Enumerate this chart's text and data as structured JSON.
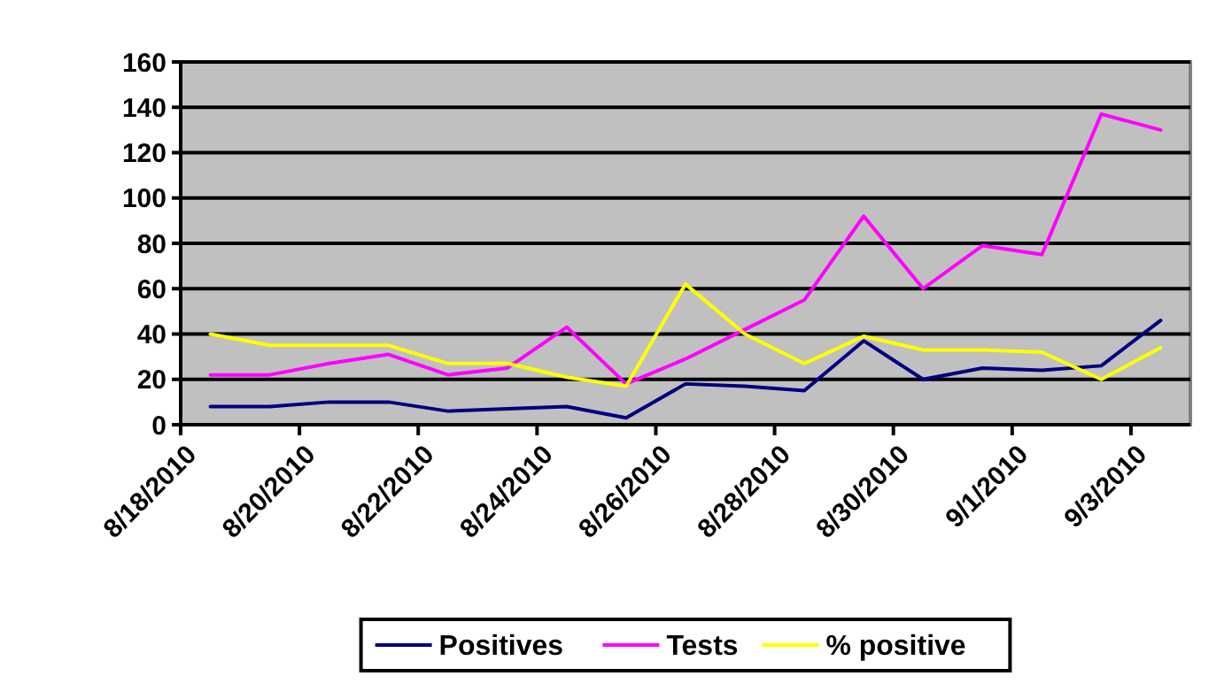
{
  "chart_data": {
    "type": "line",
    "x": [
      "2010-08-18T12:00",
      "2010-08-19T12:00",
      "2010-08-20T12:00",
      "2010-08-21T12:00",
      "2010-08-22T12:00",
      "2010-08-23T12:00",
      "2010-08-24T12:00",
      "2010-08-25T12:00",
      "2010-08-26T12:00",
      "2010-08-27T12:00",
      "2010-08-28T12:00",
      "2010-08-29T12:00",
      "2010-08-30T12:00",
      "2010-08-31T12:00",
      "2010-09-01T12:00",
      "2010-09-02T12:00",
      "2010-09-03T12:00"
    ],
    "series": [
      {
        "name": "Positives",
        "color": "#000080",
        "values": [
          8,
          8,
          10,
          10,
          6,
          7,
          8,
          3,
          18,
          17,
          15,
          37,
          20,
          25,
          24,
          26,
          46
        ]
      },
      {
        "name": "Tests",
        "color": "#ff00ff",
        "values": [
          22,
          22,
          27,
          31,
          22,
          25,
          43,
          18,
          29,
          42,
          55,
          92,
          60,
          79,
          75,
          137,
          130
        ]
      },
      {
        "name": "% positive",
        "color": "#ffff00",
        "values": [
          40,
          35,
          35,
          35,
          27,
          27,
          21,
          17,
          62,
          40,
          27,
          39,
          33,
          33,
          32,
          20,
          34
        ]
      }
    ],
    "xlim": [
      "2010-08-18",
      "2010-09-04"
    ],
    "xticks": [
      {
        "value": "2010-08-18",
        "label": "8/18/2010"
      },
      {
        "value": "2010-08-20",
        "label": "8/20/2010"
      },
      {
        "value": "2010-08-22",
        "label": "8/22/2010"
      },
      {
        "value": "2010-08-24",
        "label": "8/24/2010"
      },
      {
        "value": "2010-08-26",
        "label": "8/26/2010"
      },
      {
        "value": "2010-08-28",
        "label": "8/28/2010"
      },
      {
        "value": "2010-08-30",
        "label": "8/30/2010"
      },
      {
        "value": "2010-09-01",
        "label": "9/1/2010"
      },
      {
        "value": "2010-09-03",
        "label": "9/3/2010"
      }
    ],
    "ylim": [
      0,
      160
    ],
    "yticks": [
      0,
      20,
      40,
      60,
      80,
      100,
      120,
      140,
      160
    ],
    "grid": "y",
    "legend": "bottom",
    "marker": "none",
    "line_style": "solid"
  }
}
